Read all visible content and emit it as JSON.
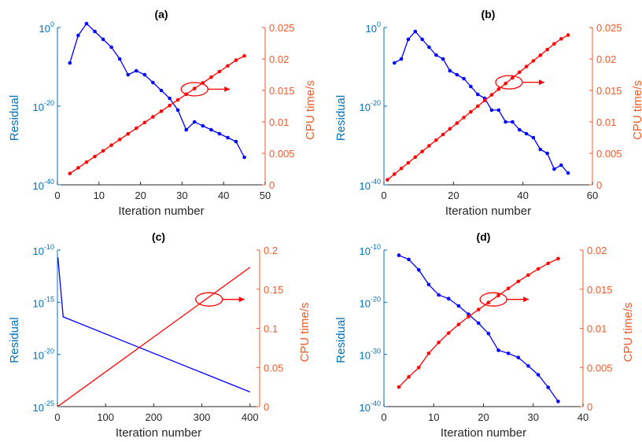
{
  "chart_data": [
    {
      "type": "line",
      "title": "(a)",
      "xlabel": "Iteration number",
      "ylabel_left": "Residual",
      "ylabel_right": "CPU time/s",
      "xlim": [
        0,
        50
      ],
      "xticks": [
        0,
        10,
        20,
        30,
        40,
        50
      ],
      "ylim_left_exp": [
        -40,
        0
      ],
      "yticks_left_exp": [
        -40,
        -20,
        0
      ],
      "ylim_right": [
        0,
        0.025
      ],
      "yticks_right": [
        "0",
        "0.005",
        "0.01",
        "0.015",
        "0.02",
        "0.025"
      ],
      "log_left": true,
      "markers": true,
      "colors": {
        "left": "#0000FF",
        "right": "#FF0000"
      },
      "series": [
        {
          "axis": "left",
          "x": [
            3,
            5,
            7,
            9,
            11,
            13,
            15,
            17,
            19,
            21,
            23,
            25,
            27,
            29,
            31,
            33,
            35,
            37,
            39,
            41,
            43,
            45
          ],
          "y": [
            -9,
            -2,
            1,
            -1,
            -3,
            -5,
            -8,
            -12,
            -11,
            -12,
            -14,
            -16,
            -18,
            -21,
            -26,
            -24,
            -25,
            -26,
            -27,
            -28,
            -29,
            -33
          ]
        },
        {
          "axis": "right",
          "x": [
            3,
            5,
            7,
            9,
            11,
            13,
            15,
            17,
            19,
            21,
            23,
            25,
            27,
            29,
            31,
            33,
            35,
            37,
            39,
            41,
            43,
            45
          ],
          "y": [
            0.0018,
            0.0027,
            0.0036,
            0.0045,
            0.0054,
            0.0063,
            0.0072,
            0.0081,
            0.009,
            0.0099,
            0.0108,
            0.0117,
            0.0126,
            0.0135,
            0.0144,
            0.0153,
            0.0162,
            0.0171,
            0.018,
            0.0189,
            0.0198,
            0.0205
          ]
        }
      ],
      "annotation": {
        "type": "ellipse-arrow",
        "points_to": "right-axis",
        "x": 33,
        "y_right": 0.0152
      }
    },
    {
      "type": "line",
      "title": "(b)",
      "xlabel": "Iteration number",
      "ylabel_left": "Residual",
      "ylabel_right": "CPU time/s",
      "xlim": [
        0,
        60
      ],
      "xticks": [
        0,
        20,
        40,
        60
      ],
      "ylim_left_exp": [
        -40,
        0
      ],
      "yticks_left_exp": [
        -40,
        -20,
        0
      ],
      "ylim_right": [
        0,
        0.025
      ],
      "yticks_right": [
        "0",
        "0.005",
        "0.01",
        "0.015",
        "0.02",
        "0.025"
      ],
      "log_left": true,
      "markers": true,
      "colors": {
        "left": "#0000FF",
        "right": "#FF0000"
      },
      "series": [
        {
          "axis": "left",
          "x": [
            3,
            5,
            7,
            9,
            11,
            13,
            15,
            17,
            19,
            21,
            23,
            25,
            27,
            29,
            31,
            33,
            35,
            37,
            39,
            41,
            43,
            45,
            47,
            49,
            51,
            53
          ],
          "y": [
            -9,
            -8,
            -3,
            -1,
            -3,
            -5,
            -7,
            -8,
            -11,
            -12,
            -13,
            -15,
            -17,
            -18,
            -21,
            -21,
            -24,
            -24,
            -26,
            -27,
            -28,
            -31,
            -32,
            -36,
            -35,
            -37
          ]
        },
        {
          "axis": "right",
          "x": [
            1,
            3,
            5,
            7,
            9,
            11,
            13,
            15,
            17,
            19,
            21,
            23,
            25,
            27,
            29,
            31,
            33,
            35,
            37,
            39,
            41,
            43,
            45,
            47,
            49,
            51,
            53
          ],
          "y": [
            0.0008,
            0.0017,
            0.0026,
            0.0035,
            0.0044,
            0.0053,
            0.0062,
            0.0071,
            0.008,
            0.0089,
            0.0098,
            0.0107,
            0.0116,
            0.0125,
            0.0134,
            0.0143,
            0.0152,
            0.0161,
            0.017,
            0.0179,
            0.0188,
            0.0197,
            0.0206,
            0.0215,
            0.0224,
            0.0232,
            0.0238
          ]
        }
      ],
      "annotation": {
        "type": "ellipse-arrow",
        "points_to": "right-axis",
        "x": 36,
        "y_right": 0.0163
      }
    },
    {
      "type": "line",
      "title": "(c)",
      "xlabel": "Iteration number",
      "ylabel_left": "Residual",
      "ylabel_right": "CPU time/s",
      "xlim": [
        0,
        420
      ],
      "xticks": [
        0,
        100,
        200,
        300,
        400
      ],
      "ylim_left_exp": [
        -25,
        -10
      ],
      "yticks_left_exp": [
        -25,
        -20,
        -15,
        -10
      ],
      "ylim_right": [
        0,
        0.2
      ],
      "yticks_right": [
        "0",
        "0.05",
        "0.1",
        "0.15",
        "0.2"
      ],
      "log_left": true,
      "markers": false,
      "colors": {
        "left": "#0000FF",
        "right": "#FF0000"
      },
      "series": [
        {
          "axis": "left",
          "x": [
            1,
            12,
            400
          ],
          "y": [
            -10.7,
            -16.4,
            -23.6
          ]
        },
        {
          "axis": "right",
          "x": [
            1,
            400
          ],
          "y": [
            0.0003,
            0.178
          ]
        }
      ],
      "annotation": {
        "type": "ellipse-arrow",
        "points_to": "right-axis",
        "x": 315,
        "y_right": 0.137
      }
    },
    {
      "type": "line",
      "title": "(d)",
      "xlabel": "Iteration number",
      "ylabel_left": "Residual",
      "ylabel_right": "CPU time/s",
      "xlim": [
        0,
        40
      ],
      "xticks": [
        0,
        10,
        20,
        30,
        40
      ],
      "ylim_left_exp": [
        -40,
        -10
      ],
      "yticks_left_exp": [
        -40,
        -30,
        -20,
        -10
      ],
      "ylim_right": [
        0,
        0.02
      ],
      "yticks_right": [
        "0",
        "0.005",
        "0.01",
        "0.015",
        "0.02"
      ],
      "log_left": true,
      "markers": true,
      "colors": {
        "left": "#0000FF",
        "right": "#FF0000"
      },
      "series": [
        {
          "axis": "left",
          "x": [
            3,
            5,
            7,
            9,
            11,
            13,
            15,
            17,
            19,
            21,
            23,
            25,
            27,
            29,
            31,
            33,
            35
          ],
          "y": [
            -11,
            -11.8,
            -13.8,
            -16.6,
            -18.6,
            -19.3,
            -20.7,
            -22.3,
            -24,
            -26,
            -29.2,
            -29.8,
            -30.6,
            -32.2,
            -33.9,
            -36.3,
            -39
          ]
        },
        {
          "axis": "right",
          "x": [
            3,
            5,
            7,
            9,
            11,
            13,
            15,
            17,
            19,
            21,
            23,
            25,
            27,
            29,
            31,
            33,
            35
          ],
          "y": [
            0.0025,
            0.0038,
            0.005,
            0.0068,
            0.0082,
            0.0094,
            0.0105,
            0.0115,
            0.0124,
            0.0133,
            0.0142,
            0.0151,
            0.016,
            0.0168,
            0.0176,
            0.0183,
            0.0189
          ]
        }
      ],
      "annotation": {
        "type": "ellipse-arrow",
        "points_to": "right-axis",
        "x": 22,
        "y_right": 0.0137
      }
    }
  ]
}
